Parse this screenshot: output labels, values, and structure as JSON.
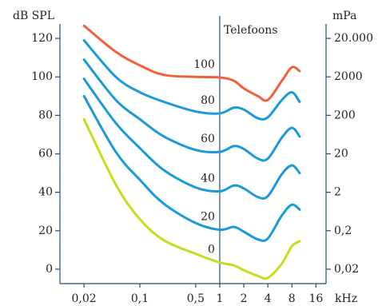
{
  "chart_data": {
    "type": "line",
    "legend_title": "Telefoons",
    "y_label": "dB SPL",
    "y2_label": "mPa",
    "x_label": "kHz",
    "x_scale": "log",
    "y2_scale": "log",
    "x": [
      0.02,
      0.05,
      0.1,
      0.2,
      0.5,
      1,
      1.5,
      2,
      3,
      4,
      6,
      8,
      10
    ],
    "xlim": [
      0.01,
      21.4
    ],
    "xticks": [
      {
        "value": 0.02,
        "label": "0,02"
      },
      {
        "value": 0.1,
        "label": "0,1"
      },
      {
        "value": 0.5,
        "label": "0,5"
      },
      1,
      2,
      4,
      8,
      16
    ],
    "ylim": [
      -7.5,
      127.5
    ],
    "yticks": [
      0,
      20,
      40,
      60,
      80,
      100,
      120
    ],
    "y2lim": [
      0.00843,
      47430
    ],
    "y2ticks": [
      {
        "value": 0.02,
        "label": "0,02"
      },
      {
        "value": 0.2,
        "label": "0,2"
      },
      2,
      20,
      200,
      2000,
      {
        "value": 20000,
        "label": "20.000"
      }
    ],
    "reference_line_x": 1,
    "series": [
      {
        "name": "100",
        "color": "#f0603a",
        "values": [
          126.6,
          113,
          106,
          101,
          100,
          99.7,
          98,
          94,
          90,
          88,
          98,
          105,
          103
        ]
      },
      {
        "name": "80",
        "color": "#1a9ad6",
        "values": [
          119,
          100,
          92,
          87,
          82,
          81,
          84,
          83,
          78.5,
          79,
          88,
          92,
          87
        ]
      },
      {
        "name": "60",
        "color": "#1a9ad6",
        "values": [
          109,
          88,
          78,
          69,
          62,
          61,
          64,
          62.5,
          57.5,
          57.5,
          68.5,
          73.5,
          69
        ]
      },
      {
        "name": "40",
        "color": "#1a9ad6",
        "values": [
          99,
          76,
          63,
          51.5,
          42.5,
          40.5,
          43.5,
          42,
          37.5,
          38,
          49.5,
          54,
          50
        ]
      },
      {
        "name": "20",
        "color": "#1a9ad6",
        "values": [
          90,
          61,
          46.5,
          34,
          24,
          20.5,
          22,
          19.5,
          15.5,
          16,
          28,
          33.5,
          31
        ]
      },
      {
        "name": "0",
        "color": "#c8dc1e",
        "values": [
          78,
          44,
          26,
          15,
          8,
          3.5,
          2,
          -0.5,
          -3.5,
          -4.5,
          3,
          12,
          14.5
        ]
      }
    ]
  }
}
